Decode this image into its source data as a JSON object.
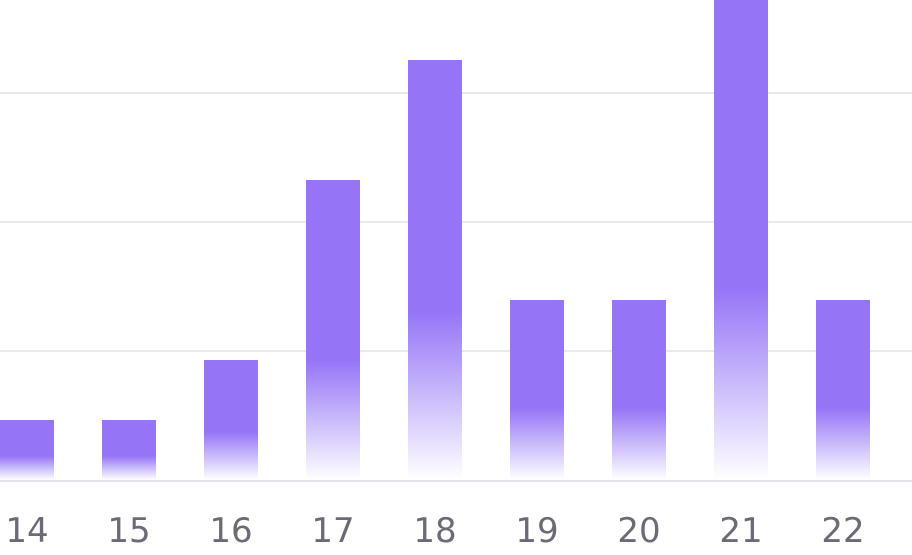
{
  "chart_data": {
    "type": "bar",
    "categories": [
      "14",
      "15",
      "16",
      "17",
      "18",
      "19",
      "20",
      "21",
      "22"
    ],
    "values": [
      1,
      1,
      2,
      5,
      7,
      3,
      3,
      8,
      3
    ],
    "ylim": [
      0,
      8
    ],
    "grid": true,
    "bar_color": "#9575f6",
    "bar_fade_color": "#ffffff",
    "grid_color": "#e9e9f0",
    "axis_color": "#e3e3ea",
    "label_color": "#6b6b78"
  }
}
